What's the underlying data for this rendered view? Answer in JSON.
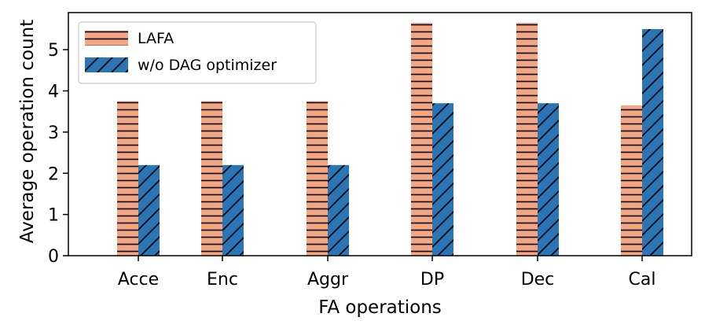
{
  "chart_data": {
    "type": "bar",
    "title": "",
    "xlabel": "FA operations",
    "ylabel": "Average operation count",
    "categories": [
      "Acce",
      "Enc",
      "Aggr",
      "DP",
      "Dec",
      "Cal"
    ],
    "series": [
      {
        "name": "LAFA",
        "values": [
          3.75,
          3.75,
          3.75,
          5.65,
          5.65,
          3.65
        ],
        "color": "#f4a582",
        "hatch": "horizontal-lines"
      },
      {
        "name": "w/o DAG optimizer",
        "values": [
          2.2,
          2.2,
          2.2,
          3.7,
          3.7,
          5.5
        ],
        "color": "#2b75b5",
        "hatch": "diagonal-lines"
      }
    ],
    "ylim": [
      0,
      5.9
    ],
    "yticks": [
      0,
      1,
      2,
      3,
      4,
      5
    ],
    "legend_position": "top-left",
    "grid": false
  }
}
